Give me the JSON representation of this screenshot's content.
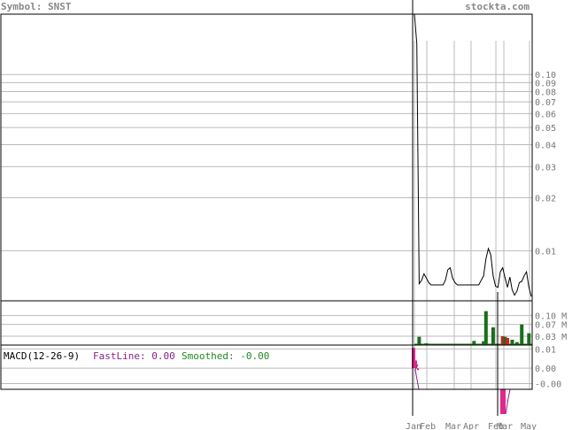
{
  "header": {
    "symbol_label": "Symbol: SNST",
    "site": "stockta.com"
  },
  "colors": {
    "grid": "#bbbbbb",
    "frame": "#000000",
    "price_line": "#000000",
    "volume_up": "#1a6e1a",
    "volume_down": "#cc2222",
    "macd_hist": "#e0288c",
    "fastline": "#882288",
    "smoothed": "#228822",
    "tick_text": "#777777"
  },
  "macd": {
    "title": "MACD(12-26-9)",
    "fast_label": "FastLine: 0.00",
    "smooth_label": "Smoothed: -0.00",
    "ticks": [
      "0.01",
      "0.00",
      "-0.00"
    ]
  },
  "chart_data": {
    "type": "line",
    "scale": "log",
    "x_ticks": [
      "Jan",
      "Feb",
      "Mar",
      "Apr",
      "Feb",
      "Mar",
      "May"
    ],
    "y_ticks": [
      0.1,
      0.09,
      0.08,
      0.07,
      0.06,
      0.05,
      0.04,
      0.03,
      0.02,
      0.01
    ],
    "y_tick_labels": [
      "0.10",
      "0.09",
      "0.08",
      "0.07",
      "0.06",
      "0.05",
      "0.04",
      "0.03",
      "0.02",
      "0.01"
    ],
    "ylim": [
      0.0052,
      0.22
    ],
    "series": [
      {
        "values": [
          0.22,
          0.15,
          0.0065,
          0.0068,
          0.0074,
          0.007,
          0.0066,
          0.0064,
          0.0064,
          0.0064,
          0.0064,
          0.0064,
          0.0064,
          0.0068,
          0.0078,
          0.008,
          0.007,
          0.0066,
          0.0064,
          0.0064,
          0.0064,
          0.0064,
          0.0064,
          0.0064,
          0.0064,
          0.0064,
          0.0064,
          0.0064,
          0.0068,
          0.0072,
          0.009,
          0.0103,
          0.0095,
          0.0072,
          0.0063,
          0.0062,
          0.0076,
          0.008,
          0.007,
          0.0062,
          0.0071,
          0.006,
          0.0056,
          0.0059,
          0.0066,
          0.0067,
          0.0072,
          0.0076,
          0.0062,
          0.0055
        ]
      }
    ],
    "volume": {
      "tick_labels": [
        "0.10 M",
        "0.07 M",
        "0.03 M"
      ],
      "ticks": [
        0.1,
        0.07,
        0.03
      ],
      "ylim": [
        0,
        0.15
      ],
      "bars": [
        {
          "i": 2,
          "v": 0.028,
          "up": true
        },
        {
          "i": 5,
          "v": 0.006,
          "up": true
        },
        {
          "i": 12,
          "v": 0.004,
          "up": true
        },
        {
          "i": 25,
          "v": 0.014,
          "up": true
        },
        {
          "i": 29,
          "v": 0.013,
          "up": true
        },
        {
          "i": 30,
          "v": 0.115,
          "up": true
        },
        {
          "i": 33,
          "v": 0.06,
          "up": true
        },
        {
          "i": 37,
          "v": 0.03,
          "up": false
        },
        {
          "i": 38,
          "v": 0.028,
          "up": true
        },
        {
          "i": 39,
          "v": 0.024,
          "up": false
        },
        {
          "i": 41,
          "v": 0.018,
          "up": true
        },
        {
          "i": 43,
          "v": 0.01,
          "up": true
        },
        {
          "i": 45,
          "v": 0.07,
          "up": true
        },
        {
          "i": 48,
          "v": 0.04,
          "up": true
        }
      ]
    },
    "macd_hist": {
      "ylim": [
        -0.011,
        0.012
      ],
      "values": [
        0.0105,
        0.0105,
        0.004,
        -0.001
      ]
    }
  }
}
